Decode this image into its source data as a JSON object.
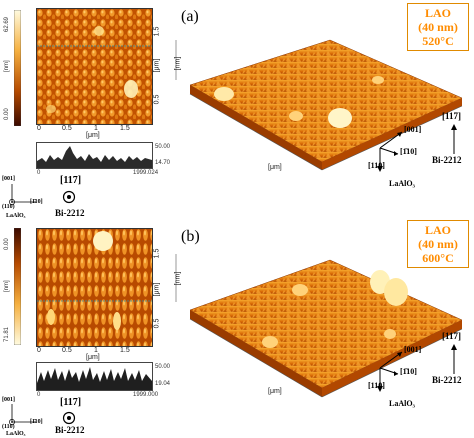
{
  "panel_a": {
    "label": "(a)",
    "lao_lines": [
      "LAO",
      "(40 nm)",
      "520°C"
    ],
    "scale_top": "62.69",
    "scale_mid": "[nm]",
    "scale_bottom": "0.00",
    "y_ticks": [
      "1.5",
      "[μm]",
      "0.5"
    ],
    "x_ticks": [
      "0",
      "0.5",
      "1",
      "1.5"
    ],
    "x_unit": "[μm]",
    "profile_right_top": "50.00",
    "profile_right_bottom": "14.70",
    "profile_left": "0",
    "profile_right": "1999.024",
    "axis_z": "[nm]",
    "axis_3d_y": "[μm]",
    "dir_001": "[001]",
    "dir_1bar10": "[1̄10]",
    "dir_110": "[110]",
    "substrate": "LaAlO₃",
    "dir_117": "[117]",
    "bi": "Bi-2212"
  },
  "panel_b": {
    "label": "(b)",
    "lao_lines": [
      "LAO",
      "(40 nm)",
      "600°C"
    ],
    "scale_top": "0.00",
    "scale_mid": "[nm]",
    "scale_bottom": "71.81",
    "y_ticks": [
      "1.5",
      "[μm]",
      "0.5"
    ],
    "x_ticks": [
      "0",
      "0.5",
      "1",
      "1.5"
    ],
    "x_unit": "[μm]",
    "profile_right_top": "50.00",
    "profile_right_bottom": "19.04",
    "profile_left": "0",
    "profile_right": "1999.000",
    "axis_z": "[nm]",
    "axis_3d_y": "[μm]",
    "dir_001": "[001]",
    "dir_1bar10": "[1̄10]",
    "dir_110": "[110]",
    "substrate": "LaAlO₃",
    "dir_117": "[117]",
    "bi": "Bi-2212"
  },
  "legend_a": {
    "dir_001": "[001]",
    "dir_110": "(110)",
    "dir_1bar10": "[1̄10]",
    "substrate": "LaAlO₃",
    "dir_117": "[117]",
    "bi": "Bi-2212"
  },
  "legend_b": {
    "dir_001": "[001]",
    "dir_110": "(110)",
    "dir_1bar10": "[1̄10]",
    "substrate": "LaAlO₃",
    "dir_117": "[117]",
    "bi": "Bi-2212"
  },
  "colors": {
    "afm_dark": "#5a1800",
    "afm_mid": "#c85a00",
    "afm_light": "#ffd27a",
    "lao_text": "#ff8c00"
  }
}
